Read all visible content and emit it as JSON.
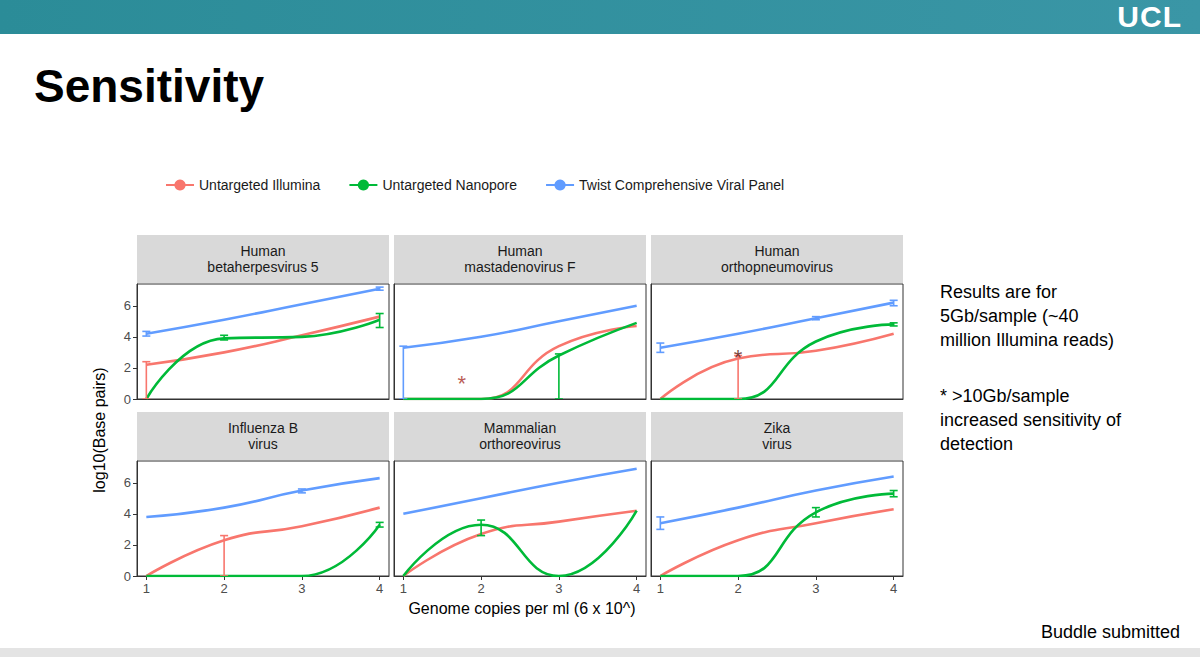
{
  "title": "Sensitivity",
  "logo": "UCL",
  "notes": [
    [
      "Results are for",
      "5Gb/sample  (~40",
      "million Illumina reads)"
    ],
    [
      "* >10Gb/sample",
      "increased sensitivity of",
      "detection"
    ]
  ],
  "footer": "Buddle submitted",
  "xlabel": "Genome copies per ml (6 x 10^)",
  "ylabel": "log10(Base pairs)",
  "chart_data": [
    {
      "type": "line",
      "title": "Human\nbetaherpesvirus 5",
      "x": [
        1,
        2,
        3,
        4
      ],
      "xlim": [
        0.88,
        4.12
      ],
      "xticks": [
        1,
        2,
        3,
        4
      ],
      "ylim": [
        0,
        7.4
      ],
      "yticks": [
        0,
        2,
        4,
        6
      ],
      "grid": false,
      "legend": "top",
      "tick_labels": "y",
      "series": [
        {
          "name": "Untargeted Illumina",
          "color": "#F8766D",
          "values": [
            2.2,
            3.0,
            4.1,
            5.3
          ],
          "errors": [
            [
              0,
              2.4
            ],
            null,
            null,
            null
          ]
        },
        {
          "name": "Untargeted Nanopore",
          "color": "#00BA38",
          "values": [
            0,
            3.9,
            4.0,
            5.1
          ],
          "errors": [
            null,
            [
              3.8,
              4.1
            ],
            null,
            [
              4.6,
              5.5
            ]
          ]
        },
        {
          "name": "Twist Comprehensive Viral Panel",
          "color": "#619CFF",
          "values": [
            4.2,
            5.1,
            6.1,
            7.1
          ],
          "errors": [
            [
              4.05,
              4.35
            ],
            null,
            null,
            [
              7.0,
              7.2
            ]
          ]
        }
      ]
    },
    {
      "type": "line",
      "title": "Human\nmastadenovirus F",
      "x": [
        1,
        2,
        3,
        4
      ],
      "xlim": [
        0.88,
        4.12
      ],
      "xticks": [
        1,
        2,
        3,
        4
      ],
      "ylim": [
        0,
        7.4
      ],
      "yticks": [
        0,
        2,
        4,
        6
      ],
      "grid": false,
      "legend": "top",
      "tick_labels": false,
      "series": [
        {
          "name": "Untargeted Illumina",
          "color": "#F8766D",
          "values": [
            0,
            0,
            3.4,
            4.7
          ],
          "errors": [
            null,
            null,
            null,
            null
          ]
        },
        {
          "name": "Untargeted Nanopore",
          "color": "#00BA38",
          "values": [
            0,
            0,
            2.8,
            4.9
          ],
          "errors": [
            null,
            null,
            [
              0,
              2.9
            ],
            null
          ]
        },
        {
          "name": "Twist Comprehensive Viral Panel",
          "color": "#619CFF",
          "values": [
            3.3,
            4.0,
            5.0,
            6.0
          ],
          "errors": [
            [
              0,
              3.4
            ],
            null,
            null,
            null
          ]
        }
      ],
      "annotations": [
        {
          "text": "*",
          "x": 1.75,
          "y": 1.0,
          "color": "#a83228"
        }
      ]
    },
    {
      "type": "line",
      "title": "Human\northopneumovirus",
      "x": [
        1,
        2,
        3,
        4
      ],
      "xlim": [
        0.88,
        4.12
      ],
      "xticks": [
        1,
        2,
        3,
        4
      ],
      "ylim": [
        0,
        7.4
      ],
      "yticks": [
        0,
        2,
        4,
        6
      ],
      "grid": false,
      "legend": "top",
      "tick_labels": false,
      "series": [
        {
          "name": "Untargeted Illumina",
          "color": "#F8766D",
          "values": [
            0,
            2.6,
            3.1,
            4.2
          ],
          "errors": [
            null,
            [
              0,
              2.8
            ],
            null,
            null
          ]
        },
        {
          "name": "Untargeted Nanopore",
          "color": "#00BA38",
          "values": [
            0,
            0,
            3.7,
            4.8
          ],
          "errors": [
            null,
            null,
            null,
            [
              4.7,
              4.9
            ]
          ]
        },
        {
          "name": "Twist Comprehensive Viral Panel",
          "color": "#619CFF",
          "values": [
            3.3,
            4.2,
            5.2,
            6.2
          ],
          "errors": [
            [
              3.0,
              3.6
            ],
            null,
            [
              5.1,
              5.3
            ],
            [
              6.0,
              6.35
            ]
          ]
        }
      ],
      "annotations": [
        {
          "text": "*",
          "x": 2.0,
          "y": 2.7,
          "color": "#5a1a12"
        }
      ]
    },
    {
      "type": "line",
      "title": "Influenza B\nvirus",
      "x": [
        1,
        2,
        3,
        4
      ],
      "xlim": [
        0.88,
        4.12
      ],
      "xticks": [
        1,
        2,
        3,
        4
      ],
      "ylim": [
        0,
        7.4
      ],
      "yticks": [
        0,
        2,
        4,
        6
      ],
      "grid": false,
      "legend": "top",
      "tick_labels": true,
      "series": [
        {
          "name": "Untargeted Illumina",
          "color": "#F8766D",
          "values": [
            0,
            2.3,
            3.2,
            4.4
          ],
          "errors": [
            null,
            [
              0,
              2.6
            ],
            null,
            null
          ]
        },
        {
          "name": "Untargeted Nanopore",
          "color": "#00BA38",
          "values": [
            0,
            0,
            0,
            3.3
          ],
          "errors": [
            null,
            null,
            null,
            [
              3.15,
              3.45
            ]
          ]
        },
        {
          "name": "Twist Comprehensive Viral Panel",
          "color": "#619CFF",
          "values": [
            3.8,
            4.4,
            5.5,
            6.3
          ],
          "errors": [
            null,
            null,
            [
              5.35,
              5.6
            ],
            null
          ]
        }
      ]
    },
    {
      "type": "line",
      "title": "Mammalian\northoreovirus",
      "x": [
        1,
        2,
        3,
        4
      ],
      "xlim": [
        0.88,
        4.12
      ],
      "xticks": [
        1,
        2,
        3,
        4
      ],
      "ylim": [
        0,
        7.4
      ],
      "yticks": [
        0,
        2,
        4,
        6
      ],
      "grid": false,
      "legend": "top",
      "tick_labels": "x",
      "series": [
        {
          "name": "Untargeted Illumina",
          "color": "#F8766D",
          "values": [
            0,
            2.7,
            3.5,
            4.2
          ],
          "errors": [
            null,
            null,
            null,
            null
          ]
        },
        {
          "name": "Untargeted Nanopore",
          "color": "#00BA38",
          "values": [
            0,
            3.3,
            0,
            4.2
          ],
          "errors": [
            null,
            [
              2.6,
              3.6
            ],
            null,
            null
          ]
        },
        {
          "name": "Twist Comprehensive Viral Panel",
          "color": "#619CFF",
          "values": [
            4.0,
            5.0,
            6.0,
            6.9
          ],
          "errors": [
            null,
            null,
            null,
            null
          ]
        }
      ]
    },
    {
      "type": "line",
      "title": "Zika\nvirus",
      "x": [
        1,
        2,
        3,
        4
      ],
      "xlim": [
        0.88,
        4.12
      ],
      "xticks": [
        1,
        2,
        3,
        4
      ],
      "ylim": [
        0,
        7.4
      ],
      "yticks": [
        0,
        2,
        4,
        6
      ],
      "grid": false,
      "legend": "top",
      "tick_labels": "x",
      "series": [
        {
          "name": "Untargeted Illumina",
          "color": "#F8766D",
          "values": [
            0,
            2.3,
            3.4,
            4.3
          ],
          "errors": [
            null,
            null,
            null,
            null
          ]
        },
        {
          "name": "Untargeted Nanopore",
          "color": "#00BA38",
          "values": [
            0,
            0,
            4.1,
            5.3
          ],
          "errors": [
            null,
            null,
            [
              3.8,
              4.4
            ],
            [
              5.1,
              5.5
            ]
          ]
        },
        {
          "name": "Twist Comprehensive Viral Panel",
          "color": "#619CFF",
          "values": [
            3.4,
            4.4,
            5.5,
            6.4
          ],
          "errors": [
            [
              3.0,
              3.8
            ],
            null,
            null,
            null
          ]
        }
      ]
    }
  ]
}
